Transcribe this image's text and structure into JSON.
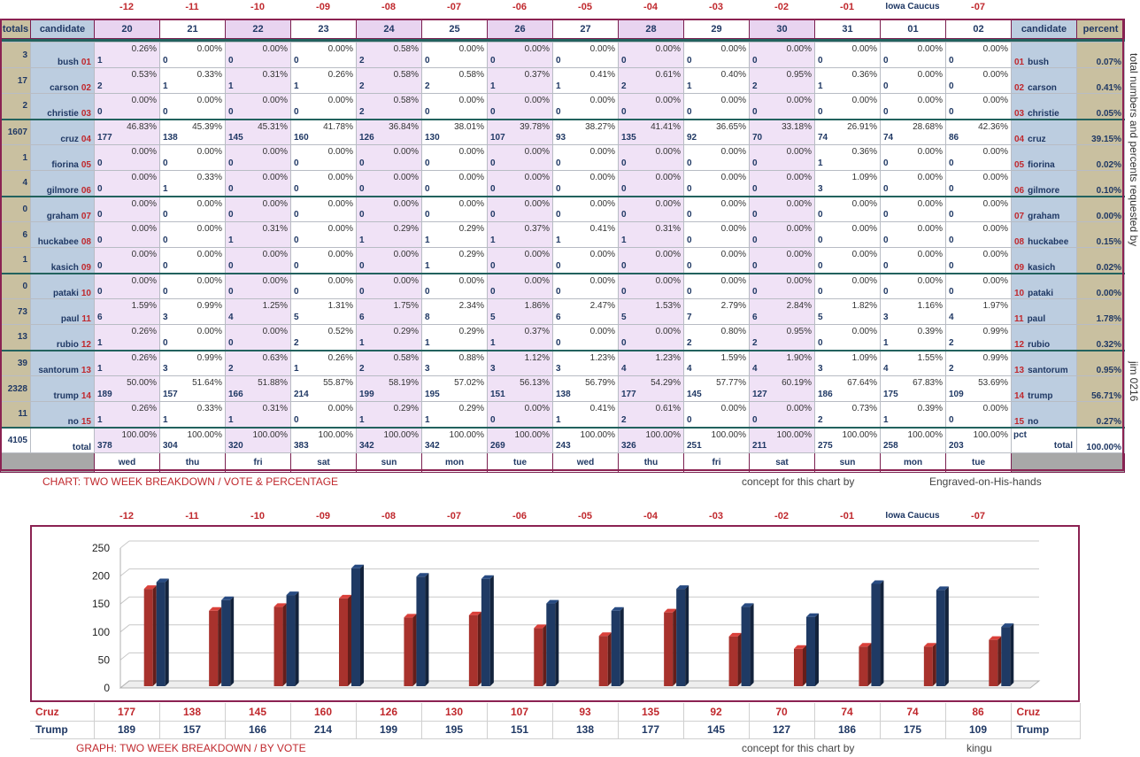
{
  "offsets": [
    "-12",
    "-11",
    "-10",
    "-09",
    "-08",
    "-07",
    "-06",
    "-05",
    "-04",
    "-03",
    "-02",
    "-01",
    "Iowa Caucus",
    "-07"
  ],
  "header": {
    "totals": "totals",
    "candidate": "candidate",
    "candidate_right": "candidate",
    "percent": "percent",
    "dates": [
      "20",
      "21",
      "22",
      "23",
      "24",
      "25",
      "26",
      "27",
      "28",
      "29",
      "30",
      "31",
      "01",
      "02"
    ]
  },
  "rows": [
    {
      "total": "3",
      "name": "bush",
      "num": "01",
      "pct": "0.07%",
      "cells": [
        [
          "1",
          "0.26%"
        ],
        [
          "0",
          "0.00%"
        ],
        [
          "0",
          "0.00%"
        ],
        [
          "0",
          "0.00%"
        ],
        [
          "2",
          "0.58%"
        ],
        [
          "0",
          "0.00%"
        ],
        [
          "0",
          "0.00%"
        ],
        [
          "0",
          "0.00%"
        ],
        [
          "0",
          "0.00%"
        ],
        [
          "0",
          "0.00%"
        ],
        [
          "0",
          "0.00%"
        ],
        [
          "0",
          "0.00%"
        ],
        [
          "0",
          "0.00%"
        ],
        [
          "0",
          "0.00%"
        ]
      ]
    },
    {
      "total": "17",
      "name": "carson",
      "num": "02",
      "pct": "0.41%",
      "cells": [
        [
          "2",
          "0.53%"
        ],
        [
          "1",
          "0.33%"
        ],
        [
          "1",
          "0.31%"
        ],
        [
          "1",
          "0.26%"
        ],
        [
          "2",
          "0.58%"
        ],
        [
          "2",
          "0.58%"
        ],
        [
          "1",
          "0.37%"
        ],
        [
          "1",
          "0.41%"
        ],
        [
          "2",
          "0.61%"
        ],
        [
          "1",
          "0.40%"
        ],
        [
          "2",
          "0.95%"
        ],
        [
          "1",
          "0.36%"
        ],
        [
          "0",
          "0.00%"
        ],
        [
          "0",
          "0.00%"
        ]
      ]
    },
    {
      "total": "2",
      "name": "christie",
      "num": "03",
      "pct": "0.05%",
      "cells": [
        [
          "0",
          "0.00%"
        ],
        [
          "0",
          "0.00%"
        ],
        [
          "0",
          "0.00%"
        ],
        [
          "0",
          "0.00%"
        ],
        [
          "2",
          "0.58%"
        ],
        [
          "0",
          "0.00%"
        ],
        [
          "0",
          "0.00%"
        ],
        [
          "0",
          "0.00%"
        ],
        [
          "0",
          "0.00%"
        ],
        [
          "0",
          "0.00%"
        ],
        [
          "0",
          "0.00%"
        ],
        [
          "0",
          "0.00%"
        ],
        [
          "0",
          "0.00%"
        ],
        [
          "0",
          "0.00%"
        ]
      ]
    },
    {
      "total": "1607",
      "name": "cruz",
      "num": "04",
      "pct": "39.15%",
      "cells": [
        [
          "177",
          "46.83%"
        ],
        [
          "138",
          "45.39%"
        ],
        [
          "145",
          "45.31%"
        ],
        [
          "160",
          "41.78%"
        ],
        [
          "126",
          "36.84%"
        ],
        [
          "130",
          "38.01%"
        ],
        [
          "107",
          "39.78%"
        ],
        [
          "93",
          "38.27%"
        ],
        [
          "135",
          "41.41%"
        ],
        [
          "92",
          "36.65%"
        ],
        [
          "70",
          "33.18%"
        ],
        [
          "74",
          "26.91%"
        ],
        [
          "74",
          "28.68%"
        ],
        [
          "86",
          "42.36%"
        ]
      ]
    },
    {
      "total": "1",
      "name": "fiorina",
      "num": "05",
      "pct": "0.02%",
      "cells": [
        [
          "0",
          "0.00%"
        ],
        [
          "0",
          "0.00%"
        ],
        [
          "0",
          "0.00%"
        ],
        [
          "0",
          "0.00%"
        ],
        [
          "0",
          "0.00%"
        ],
        [
          "0",
          "0.00%"
        ],
        [
          "0",
          "0.00%"
        ],
        [
          "0",
          "0.00%"
        ],
        [
          "0",
          "0.00%"
        ],
        [
          "0",
          "0.00%"
        ],
        [
          "0",
          "0.00%"
        ],
        [
          "1",
          "0.36%"
        ],
        [
          "0",
          "0.00%"
        ],
        [
          "0",
          "0.00%"
        ]
      ]
    },
    {
      "total": "4",
      "name": "gilmore",
      "num": "06",
      "pct": "0.10%",
      "cells": [
        [
          "0",
          "0.00%"
        ],
        [
          "1",
          "0.33%"
        ],
        [
          "0",
          "0.00%"
        ],
        [
          "0",
          "0.00%"
        ],
        [
          "0",
          "0.00%"
        ],
        [
          "0",
          "0.00%"
        ],
        [
          "0",
          "0.00%"
        ],
        [
          "0",
          "0.00%"
        ],
        [
          "0",
          "0.00%"
        ],
        [
          "0",
          "0.00%"
        ],
        [
          "0",
          "0.00%"
        ],
        [
          "3",
          "1.09%"
        ],
        [
          "0",
          "0.00%"
        ],
        [
          "0",
          "0.00%"
        ]
      ]
    },
    {
      "total": "0",
      "name": "graham",
      "num": "07",
      "pct": "0.00%",
      "cells": [
        [
          "0",
          "0.00%"
        ],
        [
          "0",
          "0.00%"
        ],
        [
          "0",
          "0.00%"
        ],
        [
          "0",
          "0.00%"
        ],
        [
          "0",
          "0.00%"
        ],
        [
          "0",
          "0.00%"
        ],
        [
          "0",
          "0.00%"
        ],
        [
          "0",
          "0.00%"
        ],
        [
          "0",
          "0.00%"
        ],
        [
          "0",
          "0.00%"
        ],
        [
          "0",
          "0.00%"
        ],
        [
          "0",
          "0.00%"
        ],
        [
          "0",
          "0.00%"
        ],
        [
          "0",
          "0.00%"
        ]
      ]
    },
    {
      "total": "6",
      "name": "huckabee",
      "num": "08",
      "pct": "0.15%",
      "cells": [
        [
          "0",
          "0.00%"
        ],
        [
          "0",
          "0.00%"
        ],
        [
          "1",
          "0.31%"
        ],
        [
          "0",
          "0.00%"
        ],
        [
          "1",
          "0.29%"
        ],
        [
          "1",
          "0.29%"
        ],
        [
          "1",
          "0.37%"
        ],
        [
          "1",
          "0.41%"
        ],
        [
          "1",
          "0.31%"
        ],
        [
          "0",
          "0.00%"
        ],
        [
          "0",
          "0.00%"
        ],
        [
          "0",
          "0.00%"
        ],
        [
          "0",
          "0.00%"
        ],
        [
          "0",
          "0.00%"
        ]
      ]
    },
    {
      "total": "1",
      "name": "kasich",
      "num": "09",
      "pct": "0.02%",
      "cells": [
        [
          "0",
          "0.00%"
        ],
        [
          "0",
          "0.00%"
        ],
        [
          "0",
          "0.00%"
        ],
        [
          "0",
          "0.00%"
        ],
        [
          "0",
          "0.00%"
        ],
        [
          "1",
          "0.29%"
        ],
        [
          "0",
          "0.00%"
        ],
        [
          "0",
          "0.00%"
        ],
        [
          "0",
          "0.00%"
        ],
        [
          "0",
          "0.00%"
        ],
        [
          "0",
          "0.00%"
        ],
        [
          "0",
          "0.00%"
        ],
        [
          "0",
          "0.00%"
        ],
        [
          "0",
          "0.00%"
        ]
      ]
    },
    {
      "total": "0",
      "name": "pataki",
      "num": "10",
      "pct": "0.00%",
      "cells": [
        [
          "0",
          "0.00%"
        ],
        [
          "0",
          "0.00%"
        ],
        [
          "0",
          "0.00%"
        ],
        [
          "0",
          "0.00%"
        ],
        [
          "0",
          "0.00%"
        ],
        [
          "0",
          "0.00%"
        ],
        [
          "0",
          "0.00%"
        ],
        [
          "0",
          "0.00%"
        ],
        [
          "0",
          "0.00%"
        ],
        [
          "0",
          "0.00%"
        ],
        [
          "0",
          "0.00%"
        ],
        [
          "0",
          "0.00%"
        ],
        [
          "0",
          "0.00%"
        ],
        [
          "0",
          "0.00%"
        ]
      ]
    },
    {
      "total": "73",
      "name": "paul",
      "num": "11",
      "pct": "1.78%",
      "cells": [
        [
          "6",
          "1.59%"
        ],
        [
          "3",
          "0.99%"
        ],
        [
          "4",
          "1.25%"
        ],
        [
          "5",
          "1.31%"
        ],
        [
          "6",
          "1.75%"
        ],
        [
          "8",
          "2.34%"
        ],
        [
          "5",
          "1.86%"
        ],
        [
          "6",
          "2.47%"
        ],
        [
          "5",
          "1.53%"
        ],
        [
          "7",
          "2.79%"
        ],
        [
          "6",
          "2.84%"
        ],
        [
          "5",
          "1.82%"
        ],
        [
          "3",
          "1.16%"
        ],
        [
          "4",
          "1.97%"
        ]
      ]
    },
    {
      "total": "13",
      "name": "rubio",
      "num": "12",
      "pct": "0.32%",
      "cells": [
        [
          "1",
          "0.26%"
        ],
        [
          "0",
          "0.00%"
        ],
        [
          "0",
          "0.00%"
        ],
        [
          "2",
          "0.52%"
        ],
        [
          "1",
          "0.29%"
        ],
        [
          "1",
          "0.29%"
        ],
        [
          "1",
          "0.37%"
        ],
        [
          "0",
          "0.00%"
        ],
        [
          "0",
          "0.00%"
        ],
        [
          "2",
          "0.80%"
        ],
        [
          "2",
          "0.95%"
        ],
        [
          "0",
          "0.00%"
        ],
        [
          "1",
          "0.39%"
        ],
        [
          "2",
          "0.99%"
        ]
      ]
    },
    {
      "total": "39",
      "name": "santorum",
      "num": "13",
      "pct": "0.95%",
      "cells": [
        [
          "1",
          "0.26%"
        ],
        [
          "3",
          "0.99%"
        ],
        [
          "2",
          "0.63%"
        ],
        [
          "1",
          "0.26%"
        ],
        [
          "2",
          "0.58%"
        ],
        [
          "3",
          "0.88%"
        ],
        [
          "3",
          "1.12%"
        ],
        [
          "3",
          "1.23%"
        ],
        [
          "4",
          "1.23%"
        ],
        [
          "4",
          "1.59%"
        ],
        [
          "4",
          "1.90%"
        ],
        [
          "3",
          "1.09%"
        ],
        [
          "4",
          "1.55%"
        ],
        [
          "2",
          "0.99%"
        ]
      ]
    },
    {
      "total": "2328",
      "name": "trump",
      "num": "14",
      "pct": "56.71%",
      "cells": [
        [
          "189",
          "50.00%"
        ],
        [
          "157",
          "51.64%"
        ],
        [
          "166",
          "51.88%"
        ],
        [
          "214",
          "55.87%"
        ],
        [
          "199",
          "58.19%"
        ],
        [
          "195",
          "57.02%"
        ],
        [
          "151",
          "56.13%"
        ],
        [
          "138",
          "56.79%"
        ],
        [
          "177",
          "54.29%"
        ],
        [
          "145",
          "57.77%"
        ],
        [
          "127",
          "60.19%"
        ],
        [
          "186",
          "67.64%"
        ],
        [
          "175",
          "67.83%"
        ],
        [
          "109",
          "53.69%"
        ]
      ]
    },
    {
      "total": "11",
      "name": "no",
      "num": "15",
      "pct": "0.27%",
      "cells": [
        [
          "1",
          "0.26%"
        ],
        [
          "1",
          "0.33%"
        ],
        [
          "1",
          "0.31%"
        ],
        [
          "0",
          "0.00%"
        ],
        [
          "1",
          "0.29%"
        ],
        [
          "1",
          "0.29%"
        ],
        [
          "0",
          "0.00%"
        ],
        [
          "1",
          "0.41%"
        ],
        [
          "2",
          "0.61%"
        ],
        [
          "0",
          "0.00%"
        ],
        [
          "0",
          "0.00%"
        ],
        [
          "2",
          "0.73%"
        ],
        [
          "1",
          "0.39%"
        ],
        [
          "0",
          "0.00%"
        ]
      ]
    }
  ],
  "total_row": {
    "total": "4105",
    "pct_label": "pct",
    "label": "total",
    "pct": "100.00%",
    "cells": [
      [
        "378",
        "100.00%"
      ],
      [
        "304",
        "100.00%"
      ],
      [
        "320",
        "100.00%"
      ],
      [
        "383",
        "100.00%"
      ],
      [
        "342",
        "100.00%"
      ],
      [
        "342",
        "100.00%"
      ],
      [
        "269",
        "100.00%"
      ],
      [
        "243",
        "100.00%"
      ],
      [
        "326",
        "100.00%"
      ],
      [
        "251",
        "100.00%"
      ],
      [
        "211",
        "100.00%"
      ],
      [
        "275",
        "100.00%"
      ],
      [
        "258",
        "100.00%"
      ],
      [
        "203",
        "100.00%"
      ]
    ]
  },
  "days": [
    "wed",
    "thu",
    "fri",
    "sat",
    "sun",
    "mon",
    "tue",
    "wed",
    "thu",
    "fri",
    "sat",
    "sun",
    "mon",
    "tue"
  ],
  "side_text": "total numbers and percents requested by",
  "side_sig": "jim 0216",
  "caption1": {
    "title": "CHART: TWO WEEK BREAKDOWN / VOTE & PERCENTAGE",
    "concept": "concept for this chart by",
    "author": "Engraved-on-His-hands"
  },
  "caption2": {
    "title": "GRAPH: TWO WEEK BREAKDOWN / BY VOTE",
    "concept": "concept for this chart by",
    "author": "kingu"
  },
  "chart_data": {
    "type": "bar",
    "categories": [
      "-12",
      "-11",
      "-10",
      "-09",
      "-08",
      "-07",
      "-06",
      "-05",
      "-04",
      "-03",
      "-02",
      "-01",
      "Iowa Caucus",
      "-07"
    ],
    "series": [
      {
        "name": "Cruz",
        "color": "#a8322d",
        "values": [
          177,
          138,
          145,
          160,
          126,
          130,
          107,
          93,
          135,
          92,
          70,
          74,
          74,
          86
        ]
      },
      {
        "name": "Trump",
        "color": "#1f3a64",
        "values": [
          189,
          157,
          166,
          214,
          199,
          195,
          151,
          138,
          177,
          145,
          127,
          186,
          175,
          109
        ]
      }
    ],
    "ylim": [
      0,
      250
    ],
    "yticks": [
      0,
      50,
      100,
      150,
      200,
      250
    ],
    "grid": true,
    "value_labels": {
      "Cruz": [
        "177",
        "138",
        "145",
        "160",
        "126",
        "130",
        "107",
        "93",
        "135",
        "92",
        "70",
        "74",
        "74",
        "86"
      ],
      "Trump": [
        "189",
        "157",
        "166",
        "214",
        "199",
        "195",
        "151",
        "138",
        "177",
        "145",
        "127",
        "186",
        "175",
        "109"
      ]
    }
  }
}
